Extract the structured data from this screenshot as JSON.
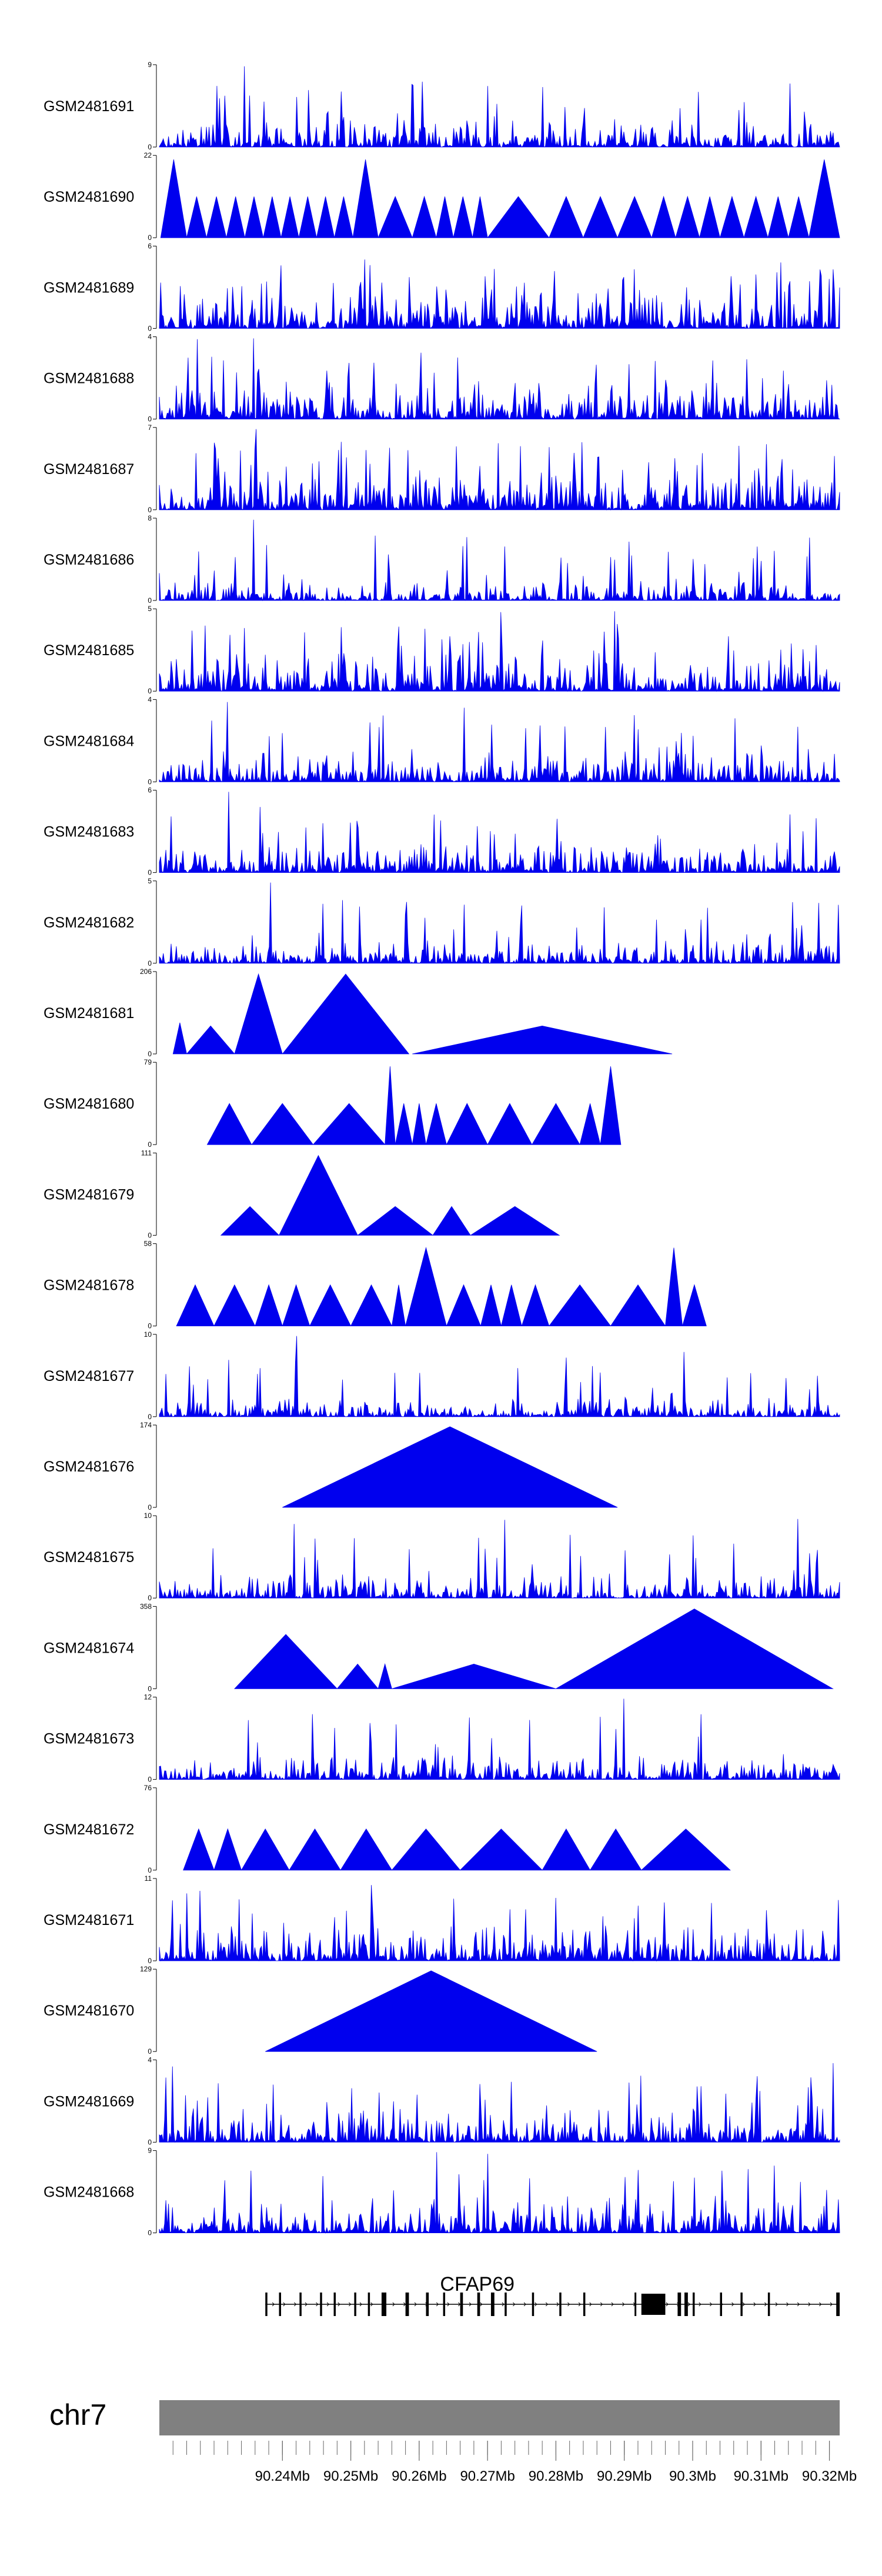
{
  "chart_data": {
    "type": "area",
    "x_range": [
      90.222,
      90.3215
    ],
    "x_unit": "Mb",
    "tracks": [
      {
        "name": "GSM2481691",
        "ymax": "9",
        "ymin": "0",
        "shape": "dense",
        "seed": 11,
        "level": 0.22,
        "peaks": [
          [
            90.2345,
            0.98
          ]
        ]
      },
      {
        "name": "GSM2481690",
        "ymax": "22",
        "ymin": "0",
        "shape": "sparse",
        "seed": 12,
        "segments": [
          [
            90.2222,
            90.226,
            0.95
          ],
          [
            90.226,
            90.2289,
            0.5
          ],
          [
            90.2289,
            90.2318,
            0.5
          ],
          [
            90.2318,
            90.2345,
            0.5
          ],
          [
            90.2345,
            90.2372,
            0.5
          ],
          [
            90.2372,
            90.2398,
            0.5
          ],
          [
            90.2398,
            90.2424,
            0.5
          ],
          [
            90.2424,
            90.245,
            0.5
          ],
          [
            90.245,
            90.2476,
            0.5
          ],
          [
            90.2476,
            90.2503,
            0.5
          ],
          [
            90.2503,
            90.254,
            0.95
          ],
          [
            90.254,
            90.259,
            0.5
          ],
          [
            90.259,
            90.2625,
            0.5
          ],
          [
            90.2625,
            90.265,
            0.5
          ],
          [
            90.265,
            90.2678,
            0.5
          ],
          [
            90.2678,
            90.27,
            0.5
          ],
          [
            90.27,
            90.279,
            0.5
          ],
          [
            90.279,
            90.284,
            0.5
          ],
          [
            90.284,
            90.289,
            0.5
          ],
          [
            90.289,
            90.294,
            0.5
          ],
          [
            90.294,
            90.2975,
            0.5
          ],
          [
            90.2975,
            90.301,
            0.5
          ],
          [
            90.301,
            90.304,
            0.5
          ],
          [
            90.304,
            90.3075,
            0.5
          ],
          [
            90.3075,
            90.311,
            0.5
          ],
          [
            90.311,
            90.314,
            0.5
          ],
          [
            90.314,
            90.317,
            0.5
          ],
          [
            90.317,
            90.3215,
            0.95
          ]
        ]
      },
      {
        "name": "GSM2481689",
        "ymax": "6",
        "ymin": "0",
        "shape": "dense",
        "seed": 13,
        "level": 0.42
      },
      {
        "name": "GSM2481688",
        "ymax": "4",
        "ymin": "0",
        "shape": "dense",
        "seed": 14,
        "level": 0.32,
        "peaks": [
          [
            90.2275,
            0.97
          ],
          [
            90.2357,
            0.98
          ]
        ]
      },
      {
        "name": "GSM2481687",
        "ymax": "7",
        "ymin": "0",
        "shape": "dense",
        "seed": 15,
        "level": 0.38,
        "peaks": [
          [
            90.2362,
            0.98
          ]
        ]
      },
      {
        "name": "GSM2481686",
        "ymax": "8",
        "ymin": "0",
        "shape": "dense",
        "seed": 16,
        "level": 0.15,
        "peaks": [
          [
            90.2357,
            0.98
          ]
        ]
      },
      {
        "name": "GSM2481685",
        "ymax": "5",
        "ymin": "0",
        "shape": "dense",
        "seed": 17,
        "level": 0.32,
        "peaks": [
          [
            90.272,
            0.96
          ],
          [
            90.2885,
            0.97
          ]
        ]
      },
      {
        "name": "GSM2481684",
        "ymax": "4",
        "ymin": "0",
        "shape": "dense",
        "seed": 18,
        "level": 0.26,
        "peaks": [
          [
            90.232,
            0.97
          ],
          [
            90.2665,
            0.9
          ]
        ]
      },
      {
        "name": "GSM2481683",
        "ymax": "6",
        "ymin": "0",
        "shape": "dense",
        "seed": 19,
        "level": 0.24,
        "peaks": [
          [
            90.2322,
            0.98
          ]
        ]
      },
      {
        "name": "GSM2481682",
        "ymax": "5",
        "ymin": "0",
        "shape": "dense",
        "seed": 20,
        "level": 0.18,
        "peaks": [
          [
            90.2382,
            0.98
          ]
        ]
      },
      {
        "name": "GSM2481681",
        "ymax": "206",
        "ymin": "0",
        "shape": "sparse",
        "seed": 21,
        "segments": [
          [
            90.224,
            90.226,
            0.38
          ],
          [
            90.226,
            90.233,
            0.34
          ],
          [
            90.233,
            90.24,
            0.97
          ],
          [
            90.24,
            90.2585,
            0.97
          ],
          [
            90.259,
            90.297,
            0.34
          ]
        ]
      },
      {
        "name": "GSM2481680",
        "ymax": "79",
        "ymin": "0",
        "shape": "sparse",
        "seed": 22,
        "segments": [
          [
            90.229,
            90.2355,
            0.5
          ],
          [
            90.2355,
            90.2445,
            0.5
          ],
          [
            90.2445,
            90.255,
            0.5
          ],
          [
            90.255,
            90.2565,
            0.95
          ],
          [
            90.2565,
            90.259,
            0.5
          ],
          [
            90.259,
            90.261,
            0.5
          ],
          [
            90.261,
            90.264,
            0.5
          ],
          [
            90.264,
            90.27,
            0.5
          ],
          [
            90.27,
            90.2765,
            0.5
          ],
          [
            90.2765,
            90.2835,
            0.5
          ],
          [
            90.2835,
            90.2865,
            0.5
          ],
          [
            90.2865,
            90.2895,
            0.95
          ]
        ]
      },
      {
        "name": "GSM2481679",
        "ymax": "111",
        "ymin": "0",
        "shape": "sparse",
        "seed": 23,
        "segments": [
          [
            90.231,
            90.2395,
            0.35
          ],
          [
            90.2395,
            90.251,
            0.97
          ],
          [
            90.251,
            90.262,
            0.35
          ],
          [
            90.262,
            90.2675,
            0.35
          ],
          [
            90.2675,
            90.2805,
            0.35
          ]
        ]
      },
      {
        "name": "GSM2481678",
        "ymax": "58",
        "ymin": "0",
        "shape": "sparse",
        "seed": 24,
        "segments": [
          [
            90.2245,
            90.23,
            0.5
          ],
          [
            90.23,
            90.236,
            0.5
          ],
          [
            90.236,
            90.24,
            0.5
          ],
          [
            90.24,
            90.244,
            0.5
          ],
          [
            90.244,
            90.25,
            0.5
          ],
          [
            90.25,
            90.256,
            0.5
          ],
          [
            90.256,
            90.258,
            0.5
          ],
          [
            90.258,
            90.264,
            0.95
          ],
          [
            90.264,
            90.269,
            0.5
          ],
          [
            90.269,
            90.272,
            0.5
          ],
          [
            90.272,
            90.275,
            0.5
          ],
          [
            90.275,
            90.279,
            0.5
          ],
          [
            90.279,
            90.288,
            0.5
          ],
          [
            90.288,
            90.296,
            0.5
          ],
          [
            90.296,
            90.2985,
            0.95
          ],
          [
            90.2985,
            90.302,
            0.5
          ]
        ]
      },
      {
        "name": "GSM2481677",
        "ymax": "10",
        "ymin": "0",
        "shape": "dense",
        "seed": 25,
        "level": 0.15,
        "peaks": [
          [
            90.242,
            0.98
          ]
        ]
      },
      {
        "name": "GSM2481676",
        "ymax": "174",
        "ymin": "0",
        "shape": "sparse",
        "seed": 26,
        "segments": [
          [
            90.24,
            90.289,
            0.98
          ]
        ]
      },
      {
        "name": "GSM2481675",
        "ymax": "10",
        "ymin": "0",
        "shape": "dense",
        "seed": 27,
        "level": 0.2,
        "peaks": [
          [
            90.2418,
            0.9
          ],
          [
            90.2725,
            0.95
          ],
          [
            90.3153,
            0.96
          ]
        ]
      },
      {
        "name": "GSM2481674",
        "ymax": "358",
        "ymin": "0",
        "shape": "sparse",
        "seed": 28,
        "segments": [
          [
            90.233,
            90.248,
            0.66
          ],
          [
            90.248,
            90.254,
            0.3
          ],
          [
            90.254,
            90.256,
            0.3
          ],
          [
            90.256,
            90.28,
            0.3
          ],
          [
            90.28,
            90.3205,
            0.97
          ]
        ]
      },
      {
        "name": "GSM2481673",
        "ymax": "12",
        "ymin": "0",
        "shape": "dense",
        "seed": 29,
        "level": 0.2,
        "peaks": [
          [
            90.235,
            0.72
          ],
          [
            90.29,
            0.98
          ]
        ]
      },
      {
        "name": "GSM2481672",
        "ymax": "76",
        "ymin": "0",
        "shape": "sparse",
        "seed": 30,
        "segments": [
          [
            90.2255,
            90.23,
            0.5
          ],
          [
            90.23,
            90.234,
            0.5
          ],
          [
            90.234,
            90.241,
            0.5
          ],
          [
            90.241,
            90.2485,
            0.5
          ],
          [
            90.2485,
            90.256,
            0.5
          ],
          [
            90.256,
            90.266,
            0.5
          ],
          [
            90.266,
            90.278,
            0.5
          ],
          [
            90.278,
            90.285,
            0.5
          ],
          [
            90.285,
            90.2925,
            0.5
          ],
          [
            90.2925,
            90.3055,
            0.5
          ]
        ]
      },
      {
        "name": "GSM2481671",
        "ymax": "11",
        "ymin": "0",
        "shape": "dense",
        "seed": 31,
        "level": 0.3,
        "peaks": [
          [
            90.228,
            0.85
          ],
          [
            90.253,
            0.92
          ]
        ]
      },
      {
        "name": "GSM2481670",
        "ymax": "129",
        "ymin": "0",
        "shape": "sparse",
        "seed": 32,
        "segments": [
          [
            90.2375,
            90.286,
            0.98
          ]
        ]
      },
      {
        "name": "GSM2481669",
        "ymax": "4",
        "ymin": "0",
        "shape": "dense",
        "seed": 33,
        "level": 0.3,
        "peaks": [
          [
            90.224,
            0.92
          ],
          [
            90.3205,
            0.96
          ]
        ]
      },
      {
        "name": "GSM2481668",
        "ymax": "9",
        "ymin": "0",
        "shape": "dense",
        "seed": 34,
        "level": 0.3,
        "peaks": [
          [
            90.2625,
            0.98
          ],
          [
            90.27,
            0.96
          ]
        ]
      }
    ],
    "gene": {
      "name": "CFAP69",
      "start": 90.2375,
      "end": 90.3215,
      "exons": [
        [
          90.2375,
          90.2378
        ],
        [
          90.2395,
          90.2398
        ],
        [
          90.2425,
          90.2428
        ],
        [
          90.2455,
          90.2458
        ],
        [
          90.2475,
          90.2478
        ],
        [
          90.2505,
          90.2508
        ],
        [
          90.2525,
          90.2528
        ],
        [
          90.2545,
          90.2552
        ],
        [
          90.258,
          90.2585
        ],
        [
          90.261,
          90.2614
        ],
        [
          90.2635,
          90.2638
        ],
        [
          90.266,
          90.2664
        ],
        [
          90.2685,
          90.2689
        ],
        [
          90.2705,
          90.271
        ],
        [
          90.2725,
          90.2728
        ],
        [
          90.2765,
          90.2768
        ],
        [
          90.2805,
          90.2808
        ],
        [
          90.284,
          90.2843
        ],
        [
          90.2915,
          90.2916
        ],
        [
          90.2925,
          90.296
        ],
        [
          90.2978,
          90.2983
        ],
        [
          90.2988,
          90.2993
        ],
        [
          90.3,
          90.3003
        ],
        [
          90.304,
          90.3043
        ],
        [
          90.307,
          90.3073
        ],
        [
          90.311,
          90.3113
        ],
        [
          90.321,
          90.3215
        ]
      ]
    },
    "chromosome": {
      "name": "chr7",
      "ticks": [
        90.24,
        90.25,
        90.26,
        90.27,
        90.28,
        90.29,
        90.3,
        90.31,
        90.32
      ],
      "tick_labels": [
        "90.24Mb",
        "90.25Mb",
        "90.26Mb",
        "90.27Mb",
        "90.28Mb",
        "90.29Mb",
        "90.3Mb",
        "90.31Mb",
        "90.32Mb"
      ],
      "minor_step": 0.002
    },
    "colors": {
      "signal": "#0000ee",
      "axis": "#000000",
      "ideogram": "#808080",
      "gene": "#000000"
    }
  }
}
